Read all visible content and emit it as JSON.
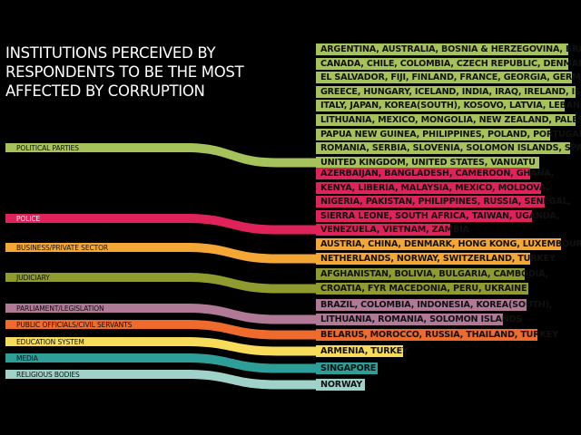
{
  "title_lines": [
    "INSTITUTIONS PERCEIVED BY",
    "RESPONDENTS TO BE THE MOST",
    "AFFECTED BY CORRUPTION"
  ],
  "institutions": [
    {
      "id": "political-parties",
      "label": "POLITICAL PARTIES",
      "color": "#a6c25a",
      "country_lines": [
        "ARGENTINA, AUSTRALIA, BOSNIA & HERZEGOVINA, BRAZIL,",
        "CANADA, CHILE, COLOMBIA, CZECH REPUBLIC, DENMARK,",
        "EL SALVADOR, FIJI, FINLAND, FRANCE, GEORGIA, GERMANY,",
        "GREECE, HUNGARY, ICELAND, INDIA, IRAQ, IRELAND, ISRAEL,",
        "ITALY, JAPAN, KOREA(SOUTH), KOSOVO, LATVIA, LEBANON,",
        "LITHUANIA, MEXICO, MONGOLIA, NEW ZEALAND, PALESTINE,",
        "PAPUA NEW GUINEA, PHILIPPINES, POLAND, PORTUGAL,",
        "ROMANIA, SERBIA, SLOVENIA, SOLOMON ISLANDS, SPAIN,",
        "UNITED KINGDOM, UNITED STATES, VANUATU"
      ]
    },
    {
      "id": "police",
      "label": "POLICE",
      "color": "#e0225a",
      "country_lines": [
        "AZERBAIJAN, BANGLADESH, CAMEROON, GHANA,",
        "KENYA, LIBERIA, MALAYSIA, MEXICO, MOLDOVA,",
        "NIGERIA, PAKISTAN, PHILIPPINES, RUSSIA, SENEGAL,",
        "SIERRA LEONE, SOUTH AFRICA, TAIWAN, UGANDA,",
        "VENEZUELA, VIETNAM, ZAMBIA"
      ]
    },
    {
      "id": "business-private-sector",
      "label": "BUSINESS/PRIVATE SECTOR",
      "color": "#f5a736",
      "country_lines": [
        "AUSTRIA, CHINA, DENMARK, HONG KONG, LUXEMBOURG,",
        "NETHERLANDS, NORWAY, SWITZERLAND, TURKEY"
      ]
    },
    {
      "id": "judiciary",
      "label": "JUDICIARY",
      "color": "#8f9a2f",
      "country_lines": [
        "AFGHANISTAN, BOLIVIA, BULGARIA, CAMBODIA,",
        "CROATIA, FYR MACEDONIA, PERU, UKRAINE"
      ]
    },
    {
      "id": "parliament-legislation",
      "label": "PARLIAMENT/LEGISLATION",
      "color": "#b07a97",
      "country_lines": [
        "BRAZIL, COLOMBIA, INDONESIA, KOREA(SOUTH),",
        "LITHUANIA, ROMANIA, SOLOMON ISLANDS"
      ]
    },
    {
      "id": "public-officials-civil-servants",
      "label": "PUBLIC OFFICIALS/CIVIL SERVANTS",
      "color": "#ee6b2d",
      "country_lines": [
        "BELARUS, MOROCCO, RUSSIA, THAILAND, TURKEY"
      ]
    },
    {
      "id": "education-system",
      "label": "EDUCATION SYSTEM",
      "color": "#f7dc5a",
      "country_lines": [
        "ARMENIA, TURKEY"
      ]
    },
    {
      "id": "media",
      "label": "MEDIA",
      "color": "#2e9e98",
      "country_lines": [
        "SINGAPORE"
      ]
    },
    {
      "id": "religious-bodies",
      "label": "RELIGIOUS BODIES",
      "color": "#9fd3c9",
      "country_lines": [
        "NORWAY"
      ]
    }
  ]
}
